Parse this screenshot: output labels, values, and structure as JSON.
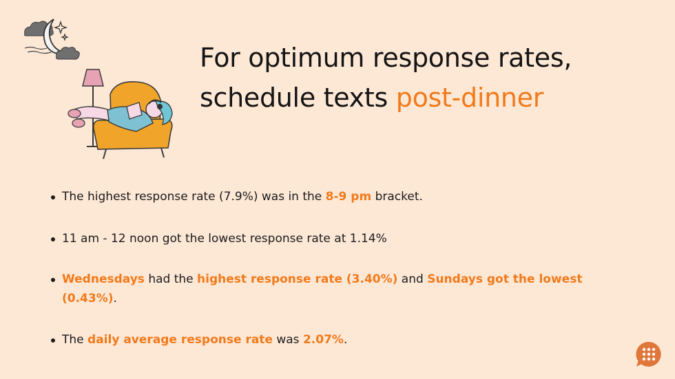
{
  "title": {
    "line1": "For optimum response rates,",
    "line2_prefix": "schedule texts ",
    "line2_accent": "post-dinner"
  },
  "bullets": [
    {
      "parts": [
        {
          "text": "The highest response rate (7.9%) was in the ",
          "highlight": false
        },
        {
          "text": "8-9 pm",
          "highlight": true
        },
        {
          "text": " bracket.",
          "highlight": false
        }
      ]
    },
    {
      "parts": [
        {
          "text": "11 am - 12 noon got the lowest response rate at 1.14%",
          "highlight": false
        }
      ]
    },
    {
      "parts": [
        {
          "text": "Wednesdays",
          "highlight": true
        },
        {
          "text": " had the ",
          "highlight": false
        },
        {
          "text": "highest response rate (3.40%)",
          "highlight": true
        },
        {
          "text": " and ",
          "highlight": false
        },
        {
          "text": "Sundays got the lowest (0.43%)",
          "highlight": true
        },
        {
          "text": ".",
          "highlight": false
        }
      ]
    },
    {
      "parts": [
        {
          "text": "The ",
          "highlight": false
        },
        {
          "text": "daily average response rate",
          "highlight": true
        },
        {
          "text": " was ",
          "highlight": false
        },
        {
          "text": "2.07%",
          "highlight": true
        },
        {
          "text": ".",
          "highlight": false
        }
      ]
    }
  ],
  "colors": {
    "background": "#fde8d6",
    "accent": "#f27a1a",
    "text": "#1b1b1b",
    "armchair": "#f0a52a",
    "logo": "#e0773a"
  },
  "icons": [
    "moon-cloud-stars-icon",
    "person-reading-armchair-illustration",
    "chat-bubble-logo-icon"
  ]
}
